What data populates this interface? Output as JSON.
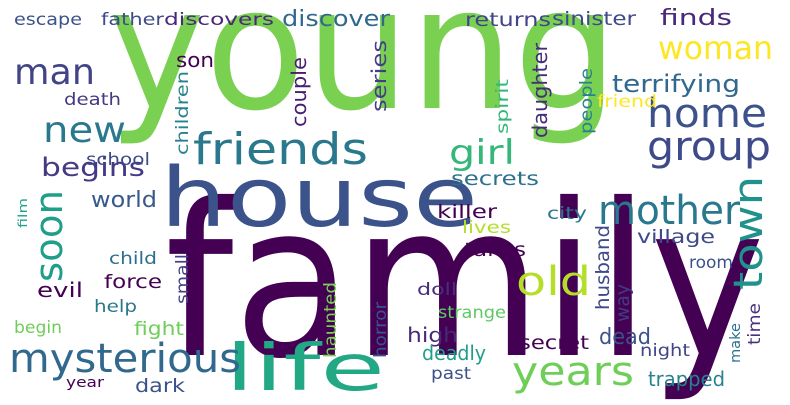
{
  "words": [
    {
      "text": "family",
      "color": "#440154"
    },
    {
      "text": "young",
      "color": "#7ad151"
    },
    {
      "text": "house",
      "color": "#3b528b"
    },
    {
      "text": "life",
      "color": "#22a884"
    },
    {
      "text": "mysterious",
      "color": "#31688e"
    },
    {
      "text": "friends",
      "color": "#2a788e"
    },
    {
      "text": "mother",
      "color": "#2a788e"
    },
    {
      "text": "group",
      "color": "#3e4a89"
    },
    {
      "text": "home",
      "color": "#3b528b"
    },
    {
      "text": "woman",
      "color": "#fde725"
    },
    {
      "text": "new",
      "color": "#2a788e"
    },
    {
      "text": "man",
      "color": "#414487"
    },
    {
      "text": "town",
      "color": "#21918c"
    },
    {
      "text": "years",
      "color": "#6ece58"
    },
    {
      "text": "old",
      "color": "#b5de2b"
    },
    {
      "text": "soon",
      "color": "#1f9e89"
    },
    {
      "text": "girl",
      "color": "#35b779"
    },
    {
      "text": "begins",
      "color": "#443983"
    },
    {
      "text": "terrifying",
      "color": "#31688e"
    },
    {
      "text": "finds",
      "color": "#482878"
    },
    {
      "text": "discover",
      "color": "#31688e"
    },
    {
      "text": "father",
      "color": "#3e4a89"
    },
    {
      "text": "discovers",
      "color": "#482878"
    },
    {
      "text": "escape",
      "color": "#3b528b"
    },
    {
      "text": "returns",
      "color": "#414487"
    },
    {
      "text": "sinister",
      "color": "#3e4a89"
    },
    {
      "text": "death",
      "color": "#443983"
    },
    {
      "text": "son",
      "color": "#440154"
    },
    {
      "text": "daughter",
      "color": "#472c7a"
    },
    {
      "text": "couple",
      "color": "#481f70"
    },
    {
      "text": "series",
      "color": "#433e85"
    },
    {
      "text": "children",
      "color": "#26828e"
    },
    {
      "text": "spirit",
      "color": "#35b779"
    },
    {
      "text": "people",
      "color": "#26828e"
    },
    {
      "text": "friend",
      "color": "#fde725"
    },
    {
      "text": "school",
      "color": "#3e4a89"
    },
    {
      "text": "world",
      "color": "#38598c"
    },
    {
      "text": "secrets",
      "color": "#2d708e"
    },
    {
      "text": "city",
      "color": "#2a788e"
    },
    {
      "text": "village",
      "color": "#3e4a89"
    },
    {
      "text": "room",
      "color": "#3b528b"
    },
    {
      "text": "killer",
      "color": "#440154"
    },
    {
      "text": "lives",
      "color": "#b5de2b"
    },
    {
      "text": "takes",
      "color": "#440154"
    },
    {
      "text": "husband",
      "color": "#3e4a89"
    },
    {
      "text": "way",
      "color": "#443983"
    },
    {
      "text": "child",
      "color": "#2d708e"
    },
    {
      "text": "force",
      "color": "#440154"
    },
    {
      "text": "evil",
      "color": "#440154"
    },
    {
      "text": "small",
      "color": "#433e85"
    },
    {
      "text": "doll",
      "color": "#472d7b"
    },
    {
      "text": "help",
      "color": "#2a788e"
    },
    {
      "text": "horror",
      "color": "#3b528b"
    },
    {
      "text": "high",
      "color": "#482878"
    },
    {
      "text": "strange",
      "color": "#5ec962"
    },
    {
      "text": "dead",
      "color": "#3b528b"
    },
    {
      "text": "fight",
      "color": "#6ece58"
    },
    {
      "text": "haunted",
      "color": "#7ad151"
    },
    {
      "text": "deadly",
      "color": "#1f9e89"
    },
    {
      "text": "secret",
      "color": "#440154"
    },
    {
      "text": "trapped",
      "color": "#26828e"
    },
    {
      "text": "night",
      "color": "#414487"
    },
    {
      "text": "time",
      "color": "#46327e"
    },
    {
      "text": "make",
      "color": "#2c718e"
    },
    {
      "text": "begin",
      "color": "#6ece58"
    },
    {
      "text": "year",
      "color": "#440154"
    },
    {
      "text": "dark",
      "color": "#3b528b"
    },
    {
      "text": "past",
      "color": "#3b528b"
    },
    {
      "text": "film",
      "color": "#1fa187"
    }
  ]
}
